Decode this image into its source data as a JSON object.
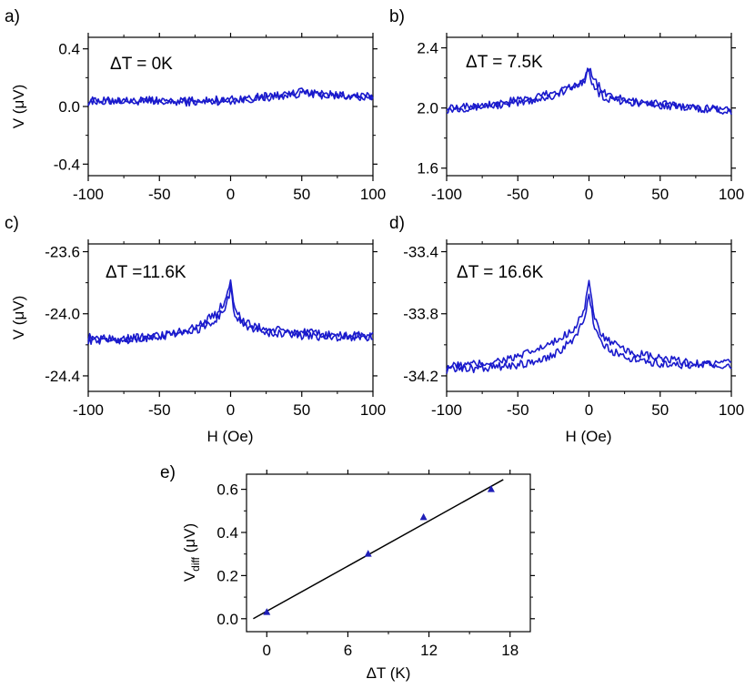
{
  "chart_data": [
    {
      "panel_label": "a)",
      "type": "line",
      "annotation": "ΔT = 0K",
      "ylabel": "V (μV)",
      "xlabel": "",
      "xlim": [
        -100,
        100
      ],
      "ylim": [
        -0.48,
        0.48
      ],
      "xticks": [
        -100,
        -50,
        0,
        50,
        100
      ],
      "xtick_labels": [
        "-100",
        "-50",
        "0",
        "50",
        "100"
      ],
      "yticks": [
        -0.4,
        0.0,
        0.4
      ],
      "ytick_labels": [
        "-0.4",
        "0.0",
        "0.4"
      ],
      "series": [
        {
          "x": [
            -100,
            -75,
            -50,
            -25,
            0,
            25,
            50,
            75,
            100
          ],
          "y": [
            0.04,
            0.04,
            0.03,
            0.03,
            0.04,
            0.06,
            0.09,
            0.07,
            0.07
          ]
        },
        {
          "x": [
            -100,
            -75,
            -50,
            -25,
            0,
            25,
            50,
            75,
            100
          ],
          "y": [
            0.03,
            0.05,
            0.04,
            0.04,
            0.05,
            0.07,
            0.1,
            0.08,
            0.06
          ]
        }
      ]
    },
    {
      "panel_label": "b)",
      "type": "line",
      "annotation": "ΔT = 7.5K",
      "ylabel": "",
      "xlabel": "",
      "xlim": [
        -100,
        100
      ],
      "ylim": [
        1.55,
        2.47
      ],
      "xticks": [
        -100,
        -50,
        0,
        50,
        100
      ],
      "xtick_labels": [
        "-100",
        "-50",
        "0",
        "50",
        "100"
      ],
      "yticks": [
        1.6,
        2.0,
        2.4
      ],
      "ytick_labels": [
        "1.6",
        "2.0",
        "2.4"
      ],
      "series": [
        {
          "x": [
            -100,
            -75,
            -50,
            -25,
            -10,
            -3,
            0,
            3,
            10,
            25,
            50,
            75,
            100
          ],
          "y": [
            1.99,
            2.01,
            2.03,
            2.08,
            2.14,
            2.19,
            2.27,
            2.2,
            2.1,
            2.05,
            2.03,
            2.0,
            1.98
          ]
        },
        {
          "x": [
            -100,
            -75,
            -50,
            -25,
            -10,
            -3,
            0,
            3,
            10,
            25,
            50,
            75,
            100
          ],
          "y": [
            2.01,
            2.02,
            2.05,
            2.1,
            2.16,
            2.21,
            2.24,
            2.14,
            2.07,
            2.04,
            2.02,
            2.0,
            1.99
          ]
        }
      ]
    },
    {
      "panel_label": "c)",
      "type": "line",
      "annotation": "ΔT =11.6K",
      "ylabel": "V (μV)",
      "xlabel": "H (Oe)",
      "xlim": [
        -100,
        100
      ],
      "ylim": [
        -24.5,
        -23.55
      ],
      "xticks": [
        -100,
        -50,
        0,
        50,
        100
      ],
      "xtick_labels": [
        "-100",
        "-50",
        "0",
        "50",
        "100"
      ],
      "yticks": [
        -24.4,
        -24.0,
        -23.6
      ],
      "ytick_labels": [
        "-24.4",
        "-24.0",
        "-23.6"
      ],
      "series": [
        {
          "x": [
            -100,
            -75,
            -50,
            -25,
            -10,
            -3,
            0,
            3,
            10,
            25,
            50,
            75,
            100
          ],
          "y": [
            -24.17,
            -24.17,
            -24.15,
            -24.09,
            -24.0,
            -23.9,
            -23.77,
            -23.97,
            -24.06,
            -24.1,
            -24.12,
            -24.14,
            -24.14
          ]
        },
        {
          "x": [
            -100,
            -75,
            -50,
            -25,
            -10,
            -3,
            0,
            3,
            10,
            25,
            50,
            75,
            100
          ],
          "y": [
            -24.15,
            -24.16,
            -24.14,
            -24.11,
            -24.04,
            -23.95,
            -23.84,
            -24.0,
            -24.08,
            -24.12,
            -24.14,
            -24.15,
            -24.15
          ]
        }
      ]
    },
    {
      "panel_label": "d)",
      "type": "line",
      "annotation": "ΔT = 16.6K",
      "ylabel": "",
      "xlabel": "H (Oe)",
      "xlim": [
        -100,
        100
      ],
      "ylim": [
        -34.3,
        -33.35
      ],
      "xticks": [
        -100,
        -50,
        0,
        50,
        100
      ],
      "xtick_labels": [
        "-100",
        "-50",
        "0",
        "50",
        "100"
      ],
      "yticks": [
        -34.2,
        -33.8,
        -33.4
      ],
      "ytick_labels": [
        "-34.2",
        "-33.8",
        "-33.4"
      ],
      "series": [
        {
          "x": [
            -100,
            -75,
            -50,
            -25,
            -10,
            -3,
            0,
            3,
            10,
            25,
            50,
            75,
            100
          ],
          "y": [
            -34.14,
            -34.12,
            -34.08,
            -33.99,
            -33.89,
            -33.76,
            -33.58,
            -33.81,
            -33.95,
            -34.04,
            -34.09,
            -34.12,
            -34.12
          ]
        },
        {
          "x": [
            -100,
            -75,
            -50,
            -25,
            -10,
            -3,
            0,
            3,
            10,
            25,
            50,
            75,
            100
          ],
          "y": [
            -34.16,
            -34.15,
            -34.13,
            -34.07,
            -33.96,
            -33.82,
            -33.65,
            -33.86,
            -34.01,
            -34.08,
            -34.12,
            -34.13,
            -34.13
          ]
        }
      ]
    },
    {
      "panel_label": "e)",
      "type": "scatter",
      "annotation": "",
      "ylabel": "V",
      "ylabel_sub": "diff",
      "ylabel_unit": "(μV)",
      "xlabel": "ΔT (K)",
      "xlim": [
        -1.5,
        19.5
      ],
      "ylim": [
        -0.06,
        0.67
      ],
      "xticks": [
        0,
        6,
        12,
        18
      ],
      "xtick_labels": [
        "0",
        "6",
        "12",
        "18"
      ],
      "yticks": [
        0.0,
        0.2,
        0.4,
        0.6
      ],
      "ytick_labels": [
        "0.0",
        "0.2",
        "0.4",
        "0.6"
      ],
      "points": [
        {
          "x": 0,
          "y": 0.03
        },
        {
          "x": 7.5,
          "y": 0.3
        },
        {
          "x": 11.6,
          "y": 0.47
        },
        {
          "x": 16.6,
          "y": 0.6
        }
      ],
      "fit_line": {
        "x": [
          -1,
          17.5
        ],
        "y": [
          0.0,
          0.645
        ]
      }
    }
  ],
  "colors": {
    "trace": "#1a1acc",
    "marker": "#1f1fb8",
    "fit": "#000000",
    "axis": "#000000"
  }
}
